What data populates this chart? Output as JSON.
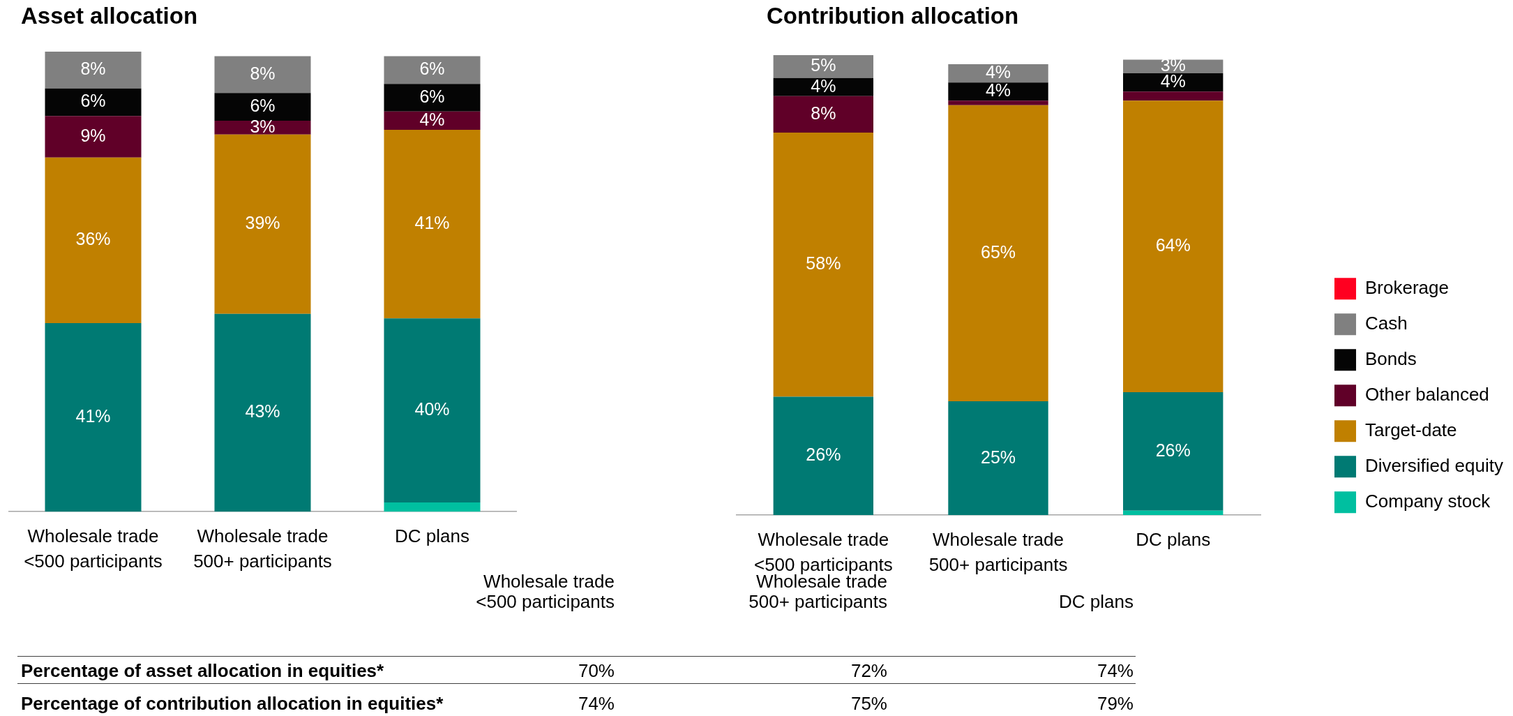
{
  "chart_data": [
    {
      "type": "bar",
      "title": "Asset allocation",
      "categories": [
        "Wholesale trade <500 participants",
        "Wholesale trade 500+ participants",
        "DC plans"
      ],
      "stacked": true,
      "tick_labels": "x",
      "series": [
        {
          "color": "#00bfa0",
          "values": [
            null,
            null,
            2
          ]
        },
        {
          "color": "#007a73",
          "values": [
            41,
            43,
            40
          ],
          "value_labels": [
            "41%",
            "43%",
            "40%"
          ]
        },
        {
          "color": "#c08000",
          "values": [
            36,
            39,
            41
          ],
          "value_labels": [
            "36%",
            "39%",
            "41%"
          ]
        },
        {
          "color": "#600028",
          "values": [
            9,
            3,
            4
          ],
          "value_labels": [
            "9%",
            "3%",
            "4%"
          ]
        },
        {
          "color": "#050505",
          "values": [
            6,
            6,
            6
          ],
          "value_labels": [
            "6%",
            "6%",
            "6%"
          ]
        },
        {
          "color": "#808080",
          "values": [
            8,
            8,
            6
          ],
          "value_labels": [
            "8%",
            "8%",
            "6%"
          ]
        }
      ]
    },
    {
      "type": "bar",
      "title": "Contribution allocation",
      "categories": [
        "Wholesale trade <500 participants",
        "Wholesale trade 500+ participants",
        "DC plans"
      ],
      "stacked": true,
      "tick_labels": "x",
      "legend": "right",
      "series": [
        {
          "name": "Company stock",
          "color": "#00bfa0",
          "values": [
            null,
            null,
            1
          ]
        },
        {
          "name": "Diversified equity",
          "color": "#007a73",
          "values": [
            26,
            25,
            26
          ],
          "value_labels": [
            "26%",
            "25%",
            "26%"
          ]
        },
        {
          "name": "Target-date",
          "color": "#c08000",
          "values": [
            58,
            65,
            64
          ],
          "value_labels": [
            "58%",
            "65%",
            "64%"
          ]
        },
        {
          "name": "Other balanced",
          "color": "#600028",
          "values": [
            8,
            1,
            2
          ],
          "value_labels": [
            "8%",
            null,
            null
          ]
        },
        {
          "name": "Bonds",
          "color": "#050505",
          "values": [
            4,
            4,
            4
          ],
          "value_labels": [
            "4%",
            "4%",
            "4%"
          ]
        },
        {
          "name": "Cash",
          "color": "#808080",
          "values": [
            5,
            4,
            3
          ],
          "value_labels": [
            "5%",
            "4%",
            "3%"
          ]
        },
        {
          "name": "Brokerage",
          "color": "#ff0020",
          "values": [
            null,
            null,
            null
          ]
        }
      ]
    },
    {
      "type": "other",
      "categories": [
        "Wholesale trade <500 participants",
        "Wholesale trade 500+ participants",
        "DC plans"
      ],
      "series": [
        {
          "name": "Percentage of asset allocation in equities*",
          "values": [
            70,
            72,
            74
          ],
          "value_labels": [
            "70%",
            "72%",
            "74%"
          ]
        },
        {
          "name": "Percentage of contribution allocation in equities*",
          "values": [
            74,
            75,
            79
          ],
          "value_labels": [
            "74%",
            "75%",
            "79%"
          ]
        }
      ]
    }
  ]
}
